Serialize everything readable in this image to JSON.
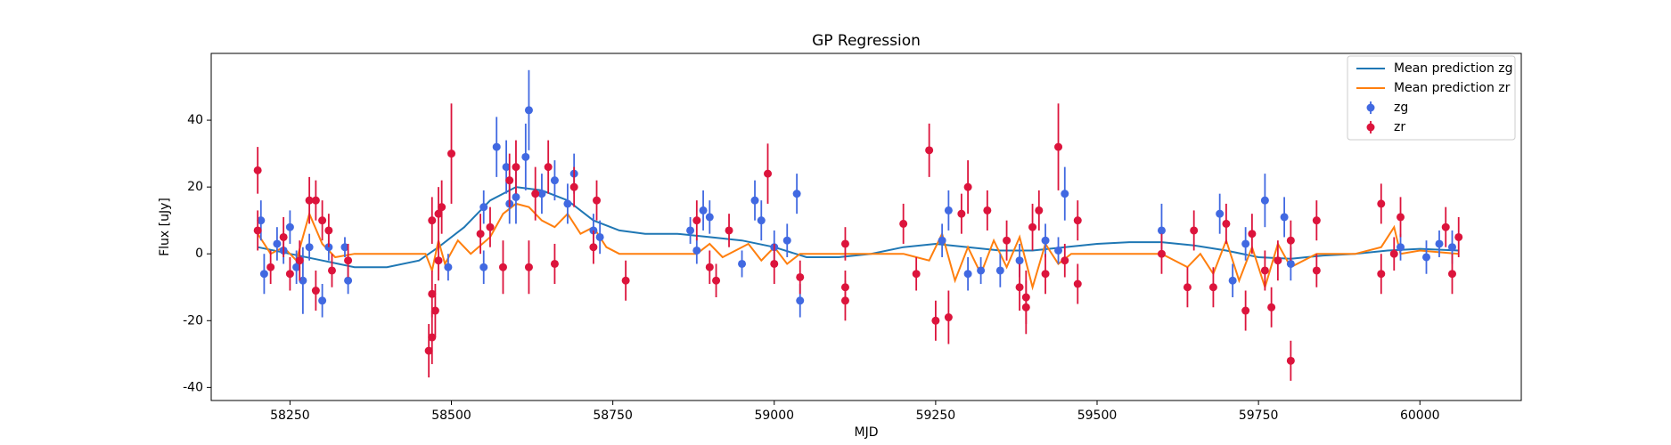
{
  "chart_data": {
    "type": "scatter",
    "title": "GP Regression",
    "x_label": "MJD",
    "y_label": "Flux [uJy]",
    "xlim": [
      58128,
      60157
    ],
    "ylim": [
      -43.9,
      60
    ],
    "xticks": [
      58250,
      58500,
      58750,
      59000,
      59250,
      59500,
      59750,
      60000
    ],
    "yticks": [
      -40,
      -20,
      0,
      20,
      40
    ],
    "legend": "upper right",
    "series": [
      {
        "name": "Mean prediction zg",
        "color": "#1f77b4",
        "x": [
          58200,
          58250,
          58300,
          58350,
          58400,
          58450,
          58480,
          58520,
          58560,
          58600,
          58640,
          58680,
          58720,
          58760,
          58800,
          58850,
          58900,
          58950,
          59000,
          59050,
          59100,
          59150,
          59200,
          59250,
          59300,
          59350,
          59400,
          59450,
          59500,
          59550,
          59600,
          59650,
          59700,
          59750,
          59800,
          59850,
          59900,
          59950,
          60000,
          60060
        ],
        "values": [
          2,
          0,
          -2,
          -4,
          -4,
          -2,
          2,
          8,
          16,
          20,
          19,
          16,
          10,
          7,
          6,
          6,
          5,
          4,
          2,
          -1,
          -1,
          0,
          2,
          3,
          2,
          1,
          1,
          2,
          3,
          3.5,
          3.5,
          2.5,
          1,
          -1,
          -1.5,
          -0.5,
          0,
          1,
          1.5,
          1
        ]
      },
      {
        "name": "Mean prediction zr",
        "color": "#ff7f0e",
        "x": [
          58200,
          58220,
          58240,
          58260,
          58280,
          58300,
          58320,
          58350,
          58400,
          58460,
          58470,
          58480,
          58490,
          58510,
          58530,
          58560,
          58580,
          58600,
          58620,
          58640,
          58660,
          58680,
          58700,
          58720,
          58740,
          58760,
          58800,
          58880,
          58900,
          58920,
          58960,
          58980,
          59000,
          59020,
          59040,
          59100,
          59200,
          59240,
          59260,
          59280,
          59300,
          59320,
          59340,
          59360,
          59380,
          59400,
          59420,
          59440,
          59460,
          59500,
          59600,
          59640,
          59660,
          59680,
          59700,
          59720,
          59740,
          59760,
          59780,
          59800,
          59840,
          59900,
          59940,
          59960,
          59970,
          60000,
          60060
        ],
        "values": [
          6,
          0,
          2,
          -2,
          12,
          3,
          -1,
          0,
          0,
          0,
          -5,
          4,
          -3,
          4,
          0,
          5,
          12,
          15,
          14,
          10,
          8,
          12,
          6,
          8,
          2,
          0,
          0,
          0,
          3,
          -1,
          3,
          -2,
          2,
          -3,
          0,
          0,
          0,
          -2,
          6,
          -8,
          2,
          -6,
          4,
          -4,
          5,
          -10,
          3,
          -3,
          0,
          0,
          0,
          -4,
          0,
          -6,
          4,
          -8,
          2,
          -10,
          3,
          -4,
          0,
          0,
          2,
          8,
          0,
          1,
          0
        ]
      },
      {
        "name": "zg",
        "color": "#4169e1",
        "x": [
          58205,
          58210,
          58230,
          58240,
          58250,
          58260,
          58270,
          58280,
          58300,
          58310,
          58340,
          58335,
          58495,
          58550,
          58550,
          58570,
          58585,
          58590,
          58600,
          58615,
          58620,
          58640,
          58660,
          58680,
          58690,
          58720,
          58730,
          58870,
          58880,
          58890,
          58900,
          58950,
          58970,
          58980,
          59000,
          59020,
          59040,
          59035,
          59260,
          59270,
          59300,
          59320,
          59350,
          59380,
          59420,
          59440,
          59450,
          59600,
          59690,
          59710,
          59730,
          59760,
          59790,
          59800,
          59970,
          60010,
          60030,
          60050
        ],
        "values": [
          10,
          -6,
          3,
          1,
          8,
          -4,
          -8,
          2,
          -14,
          2,
          -8,
          2,
          -4,
          14,
          -4,
          32,
          26,
          15,
          17,
          29,
          43,
          18,
          22,
          15,
          24,
          7,
          5,
          7,
          1,
          13,
          11,
          -3,
          16,
          10,
          2,
          4,
          -14,
          18,
          4,
          13,
          -6,
          -5,
          -5,
          -2,
          4,
          1,
          18,
          7,
          12,
          -8,
          3,
          16,
          11,
          -3,
          2,
          -1,
          3,
          2
        ],
        "errors": [
          6,
          6,
          5,
          4,
          5,
          5,
          10,
          4,
          5,
          4,
          4,
          3,
          4,
          5,
          5,
          9,
          8,
          6,
          8,
          10,
          12,
          6,
          6,
          6,
          6,
          5,
          5,
          4,
          4,
          6,
          5,
          4,
          6,
          6,
          5,
          5,
          5,
          6,
          5,
          6,
          5,
          4,
          5,
          5,
          5,
          4,
          8,
          8,
          6,
          5,
          5,
          8,
          6,
          5,
          4,
          5,
          4,
          5
        ]
      },
      {
        "name": "zr",
        "color": "#dc143c",
        "x": [
          58200,
          58200,
          58220,
          58240,
          58250,
          58265,
          58280,
          58290,
          58290,
          58300,
          58310,
          58315,
          58340,
          58465,
          58470,
          58470,
          58475,
          58470,
          58480,
          58480,
          58485,
          58500,
          58545,
          58560,
          58580,
          58590,
          58600,
          58620,
          58630,
          58650,
          58660,
          58690,
          58720,
          58725,
          58770,
          58880,
          58900,
          58910,
          58930,
          58990,
          59000,
          59040,
          59110,
          59110,
          59110,
          59200,
          59220,
          59240,
          59250,
          59270,
          59290,
          59300,
          59330,
          59360,
          59380,
          59390,
          59390,
          59400,
          59410,
          59420,
          59440,
          59450,
          59470,
          59470,
          59600,
          59640,
          59650,
          59680,
          59700,
          59730,
          59740,
          59760,
          59770,
          59780,
          59800,
          59800,
          59840,
          59840,
          59940,
          59940,
          59960,
          59970,
          60040,
          60050,
          60060
        ],
        "values": [
          25,
          7,
          -4,
          5,
          -6,
          -2,
          16,
          16,
          -11,
          10,
          7,
          -5,
          -2,
          -29,
          -25,
          10,
          -17,
          -12,
          12,
          -2,
          14,
          30,
          6,
          8,
          -4,
          22,
          26,
          -4,
          18,
          26,
          -3,
          20,
          2,
          16,
          -8,
          10,
          -4,
          -8,
          7,
          24,
          -3,
          -7,
          3,
          -10,
          -14,
          9,
          -6,
          31,
          -20,
          -19,
          12,
          20,
          13,
          4,
          -10,
          -16,
          -13,
          8,
          13,
          -6,
          32,
          -2,
          10,
          -9,
          0,
          -10,
          7,
          -10,
          9,
          -17,
          6,
          -5,
          -16,
          -2,
          -32,
          4,
          10,
          -5,
          15,
          -6,
          0,
          11,
          8,
          -6,
          5
        ],
        "errors": [
          7,
          6,
          5,
          6,
          5,
          6,
          7,
          6,
          6,
          6,
          5,
          5,
          5,
          8,
          8,
          7,
          8,
          7,
          8,
          6,
          8,
          15,
          6,
          6,
          8,
          8,
          8,
          8,
          8,
          8,
          6,
          6,
          5,
          6,
          6,
          6,
          5,
          5,
          5,
          9,
          6,
          5,
          5,
          5,
          6,
          6,
          5,
          8,
          6,
          8,
          6,
          8,
          6,
          6,
          7,
          8,
          8,
          7,
          6,
          6,
          13,
          5,
          6,
          6,
          6,
          6,
          6,
          6,
          6,
          6,
          6,
          6,
          6,
          6,
          6,
          6,
          6,
          5,
          6,
          6,
          5,
          6,
          6,
          6,
          6
        ]
      }
    ]
  }
}
